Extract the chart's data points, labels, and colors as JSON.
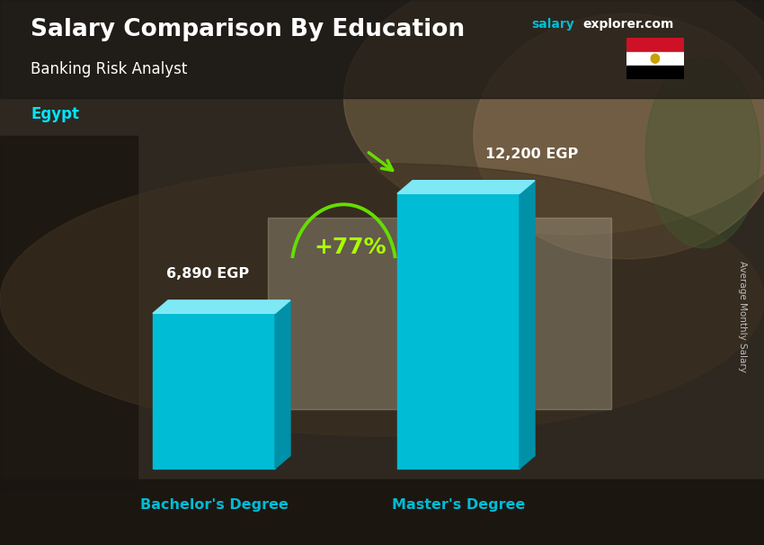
{
  "title": "Salary Comparison By Education",
  "subtitle": "Banking Risk Analyst",
  "country": "Egypt",
  "ylabel": "Average Monthly Salary",
  "categories": [
    "Bachelor's Degree",
    "Master's Degree"
  ],
  "values": [
    6890,
    12200
  ],
  "labels": [
    "6,890 EGP",
    "12,200 EGP"
  ],
  "bar_color_front": "#00bcd4",
  "bar_color_top": "#7ee8f5",
  "bar_color_side": "#0090a8",
  "pct_change": "+77%",
  "pct_color": "#aaff00",
  "arc_color": "#66dd00",
  "arrow_color": "#66dd00",
  "title_color": "#ffffff",
  "subtitle_color": "#ffffff",
  "country_color": "#00e5ff",
  "watermark_salary_color": "#00bcd4",
  "watermark_rest_color": "#ffffff",
  "label_color": "#ffffff",
  "xlabel_color": "#00bcd4",
  "ylabel_color": "#cccccc",
  "bg_top_color": "#3a3028",
  "bg_bottom_color": "#1a1510",
  "ylim": [
    0,
    14500
  ],
  "flag_red": "#CE1126",
  "flag_white": "#FFFFFF",
  "flag_black": "#000000",
  "flag_gold": "#C8A000"
}
